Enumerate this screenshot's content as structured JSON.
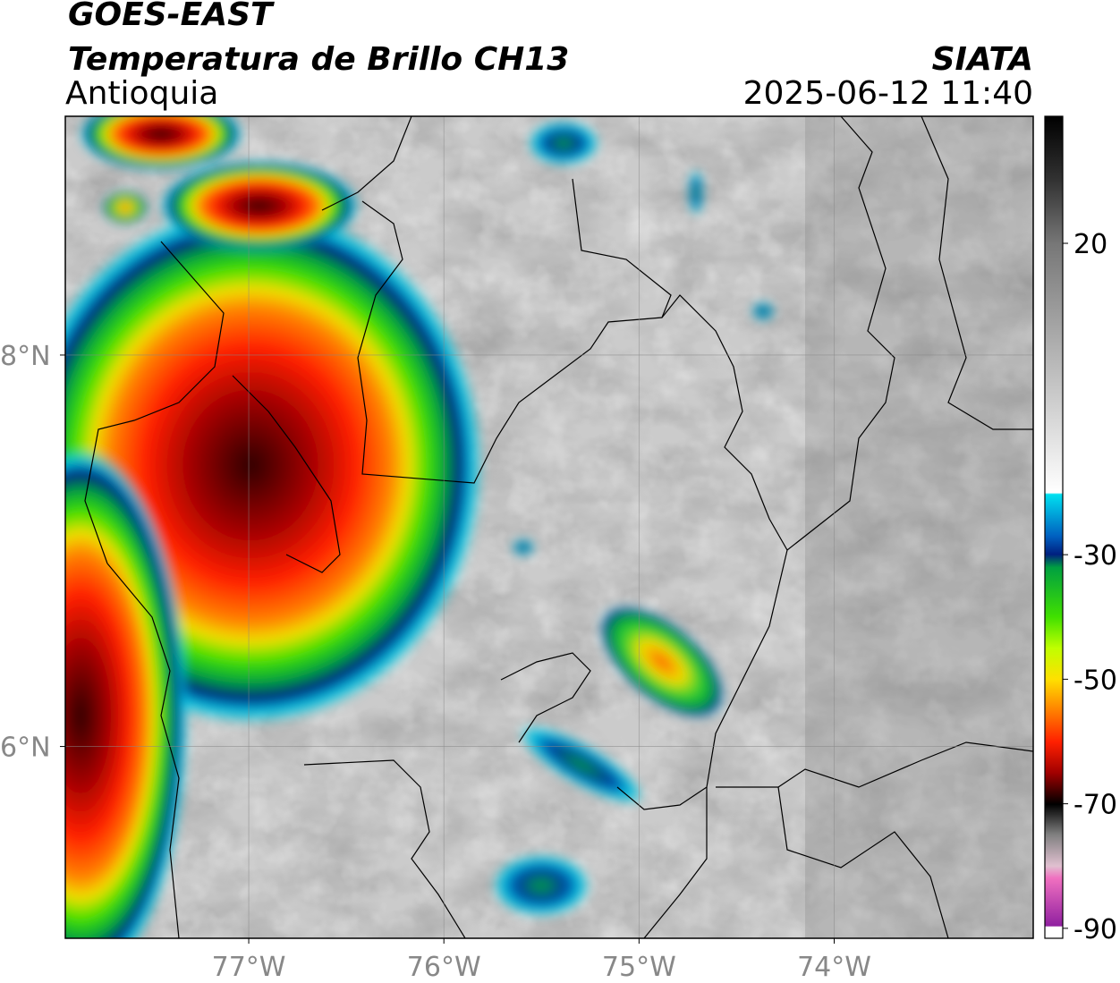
{
  "header": {
    "title": "GOES-EAST",
    "product": "Temperatura de Brillo CH13",
    "region": "Antioquia",
    "source": "SIATA",
    "datetime": "2025-06-12 11:40"
  },
  "map": {
    "lonlim": [
      -77.94,
      -72.98
    ],
    "latlim": [
      5.02,
      9.22
    ],
    "lonticks": [
      {
        "value": -77,
        "label": "77°W"
      },
      {
        "value": -76,
        "label": "76°W"
      },
      {
        "value": -75,
        "label": "75°W"
      },
      {
        "value": -74,
        "label": "74°W"
      }
    ],
    "latticks": [
      {
        "value": 8,
        "label": "8°N"
      },
      {
        "value": 6,
        "label": "6°N"
      }
    ],
    "grid": true
  },
  "colorbar": {
    "lim": [
      -91.6,
      40.4
    ],
    "ticks": [
      20,
      -30,
      -50,
      -70,
      -90
    ]
  }
}
